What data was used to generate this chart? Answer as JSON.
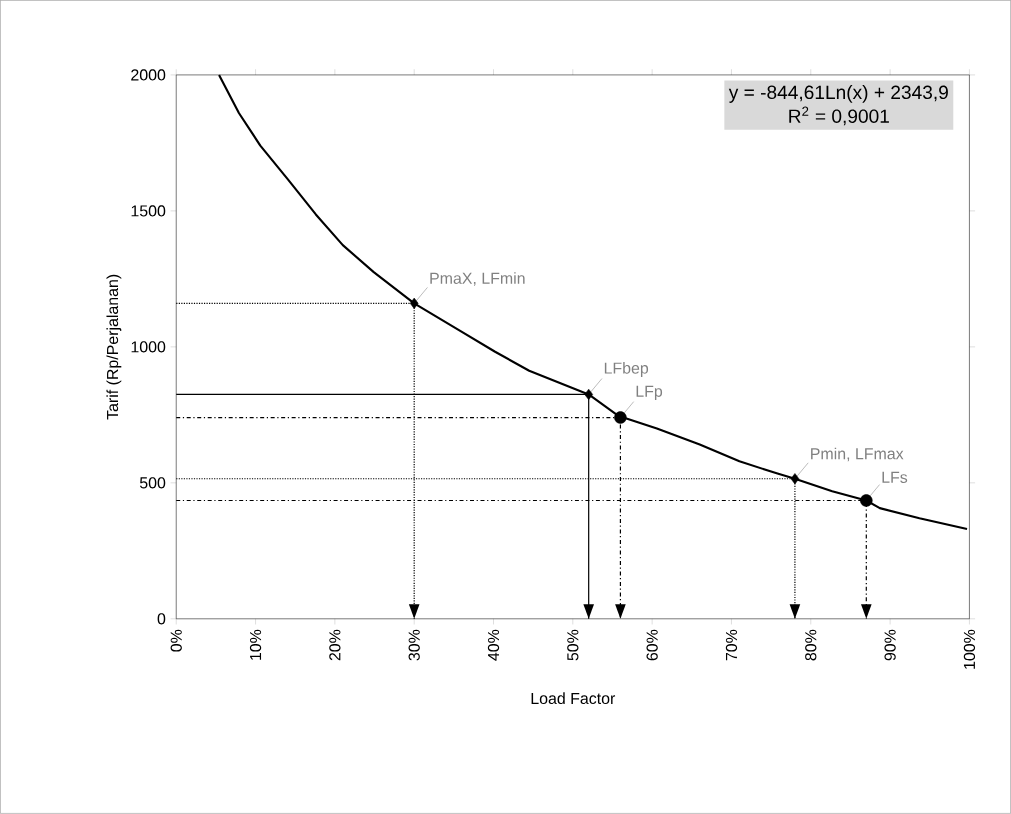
{
  "chart_data": {
    "type": "line",
    "xlabel": "Load Factor",
    "ylabel": "Tarif (Rp/Perjalanan)",
    "xlim": [
      0,
      100
    ],
    "ylim": [
      0,
      2000
    ],
    "xticks": [
      {
        "value": 0,
        "label": "0%"
      },
      {
        "value": 10,
        "label": "10%"
      },
      {
        "value": 20,
        "label": "20%"
      },
      {
        "value": 30,
        "label": "30%"
      },
      {
        "value": 40,
        "label": "40%"
      },
      {
        "value": 50,
        "label": "50%"
      },
      {
        "value": 60,
        "label": "60%"
      },
      {
        "value": 70,
        "label": "70%"
      },
      {
        "value": 80,
        "label": "80%"
      },
      {
        "value": 90,
        "label": "90%"
      },
      {
        "value": 100,
        "label": "100%"
      }
    ],
    "yticks": [
      0,
      500,
      1000,
      1500,
      2000
    ],
    "series": [
      {
        "color": "#000000",
        "marker": "none",
        "line_style": "solid",
        "x": [
          5.4,
          7.9,
          10.6,
          14.1,
          17.6,
          21,
          24.9,
          30,
          35.8,
          40.2,
          44.5,
          52,
          55.7,
          60.6,
          66,
          71,
          75.7,
          78,
          82.7,
          87,
          88.7,
          93.7,
          99.7
        ],
        "values": [
          2000,
          1860,
          1740,
          1615,
          1487,
          1374,
          1275,
          1160,
          1059,
          982,
          912,
          825,
          747,
          700,
          641,
          579,
          535,
          515,
          469,
          435,
          407,
          370,
          330
        ]
      },
      {
        "type": "line",
        "color": "#000000",
        "marker": "none",
        "line_style": "dotted",
        "x": [
          0,
          30,
          30
        ],
        "values": [
          1160,
          1160,
          0
        ]
      },
      {
        "type": "line",
        "color": "#000000",
        "marker": "none",
        "line_style": "solid",
        "x": [
          0,
          52,
          52
        ],
        "values": [
          825,
          825,
          0
        ]
      },
      {
        "type": "line",
        "color": "#000000",
        "marker": "none",
        "line_style": "dashed",
        "x": [
          0,
          56,
          56
        ],
        "values": [
          740,
          740,
          0
        ]
      },
      {
        "type": "line",
        "color": "#000000",
        "marker": "none",
        "line_style": "dotted",
        "x": [
          0,
          78,
          78
        ],
        "values": [
          515,
          515,
          0
        ]
      },
      {
        "type": "line",
        "color": "#000000",
        "marker": "none",
        "line_style": "dashed",
        "x": [
          0,
          87,
          87
        ],
        "values": [
          435,
          435,
          0
        ]
      },
      {
        "type": "scatter",
        "color": "#000000",
        "marker": "diamond",
        "x": [
          30,
          52,
          78
        ],
        "values": [
          1160,
          825,
          515
        ]
      },
      {
        "type": "scatter",
        "color": "#000000",
        "marker": "circle",
        "x": [
          56,
          87
        ],
        "values": [
          740,
          435
        ]
      }
    ],
    "annotations": [
      "y = -844,61Ln(x) + 2343,9",
      "R$^{2}$ = 0,9001",
      {
        "text": "PmaX, LFmin",
        "x": 30,
        "y": 1160
      },
      {
        "text": "LFbep",
        "x": 52,
        "y": 825
      },
      {
        "text": "LFp",
        "x": 56,
        "y": 740
      },
      {
        "text": "Pmin, LFmax",
        "x": 78,
        "y": 515
      },
      {
        "text": "LFs",
        "x": 87,
        "y": 435
      }
    ]
  }
}
